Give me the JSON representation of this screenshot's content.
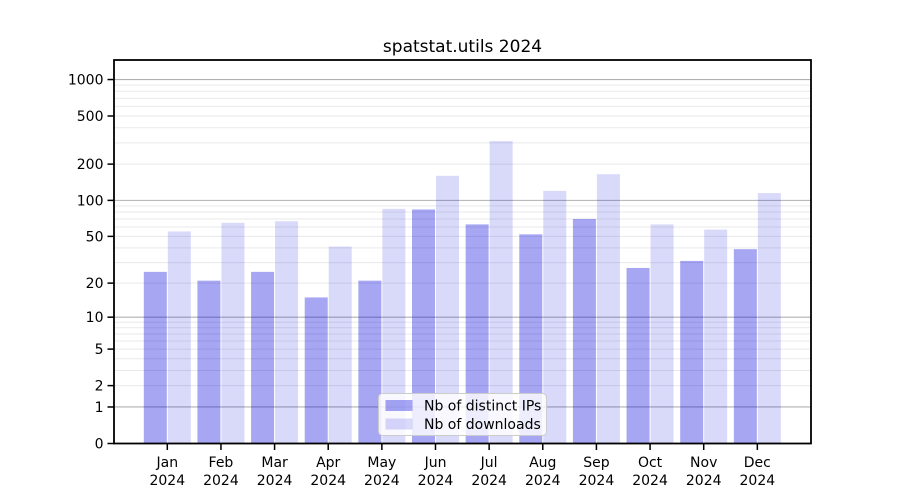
{
  "figure": {
    "title": "spatstat.utils 2024"
  },
  "chart_data": {
    "type": "bar",
    "title": "spatstat.utils 2024",
    "categories": [
      "Jan",
      "Feb",
      "Mar",
      "Apr",
      "May",
      "Jun",
      "Jul",
      "Aug",
      "Sep",
      "Oct",
      "Nov",
      "Dec"
    ],
    "year_label": "2024",
    "series": [
      {
        "name": "Nb of distinct IPs",
        "color": "rgba(0,0,221,0.35)",
        "values": [
          25,
          21,
          25,
          15,
          21,
          84,
          63,
          52,
          70,
          27,
          31,
          39
        ]
      },
      {
        "name": "Nb of downloads",
        "color": "rgba(0,0,221,0.15)",
        "values": [
          55,
          65,
          67,
          41,
          85,
          160,
          310,
          120,
          165,
          63,
          57,
          115
        ]
      }
    ],
    "xlabel": "",
    "ylabel": "",
    "y_scale": "log10(1+y)",
    "y_ticks": [
      0,
      1,
      2,
      5,
      10,
      20,
      50,
      100,
      200,
      500,
      1000
    ],
    "ylim": [
      0,
      1435
    ],
    "grid": {
      "major_color": "#b0b0b0",
      "minor_color": "#e9e9e9",
      "major_at": [
        1,
        10,
        100,
        1000
      ],
      "minor_decades": [
        1,
        10,
        100
      ]
    },
    "legend": {
      "position": "lower center",
      "labels": [
        "Nb of distinct IPs",
        "Nb of downloads"
      ],
      "border_color": "#cccccc",
      "background": "rgba(255,255,255,0.8)"
    },
    "spine_color": "#000000"
  }
}
